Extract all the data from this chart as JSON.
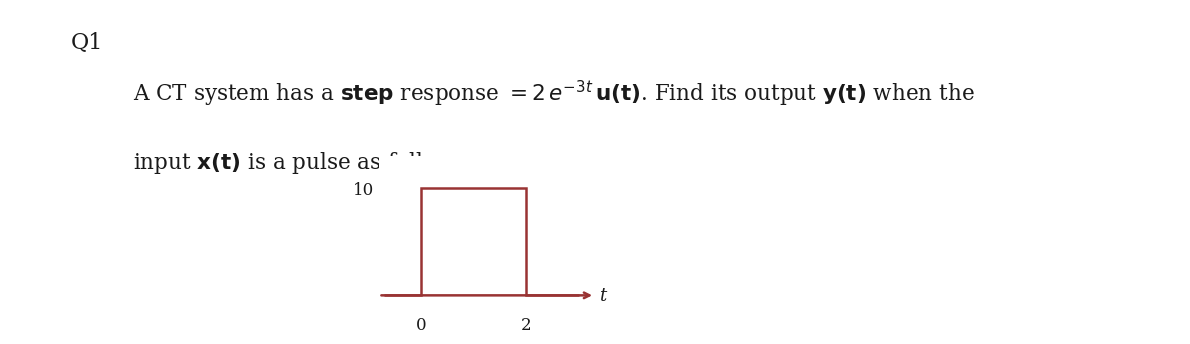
{
  "q_label": "Q1",
  "line1_mathtext": "A CT system has a $\\mathbf{step}$ response $= 2\\,e^{-3t}\\,\\mathbf{u(t)}$. Find its output $\\mathbf{y(t)}$ when the",
  "line2_mathtext": "input $\\mathbf{x(t)}$ is a pulse as follows:",
  "pulse_x": [
    -0.7,
    0,
    0,
    2,
    2,
    3.0
  ],
  "pulse_y": [
    0,
    0,
    10,
    10,
    0,
    0
  ],
  "pulse_color": "#993333",
  "pulse_linewidth": 1.8,
  "ytick_val": 10,
  "xtick_vals": [
    0,
    2
  ],
  "xtick_labels": [
    "0",
    "2"
  ],
  "t_label": "t",
  "ylim": [
    -1.5,
    13
  ],
  "xlim": [
    -0.8,
    3.3
  ],
  "background_color": "#ffffff",
  "text_color": "#1a1a1a",
  "fontsize_main": 15.5,
  "fontsize_q": 16,
  "fontsize_axis": 12,
  "fig_width": 11.7,
  "fig_height": 3.11
}
